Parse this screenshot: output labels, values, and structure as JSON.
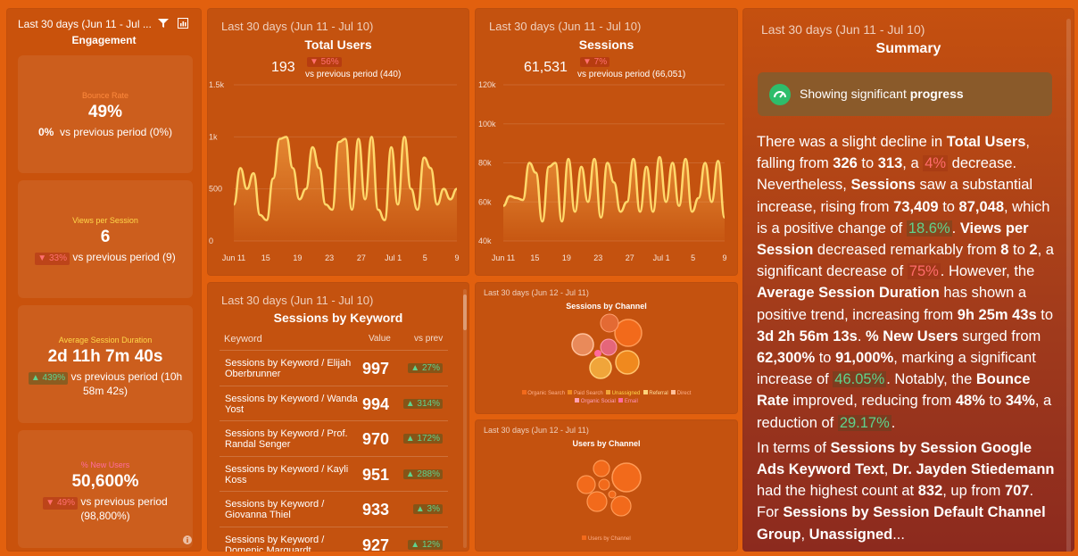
{
  "engagement": {
    "period": "Last 30 days (Jun 11 - Jul ...",
    "title": "Engagement",
    "cards": [
      {
        "label": "Bounce Rate",
        "value": "49%",
        "change": "0%",
        "compare": "vs previous period (0%)",
        "label_color": "#ff8a3d"
      },
      {
        "label": "Views per Session",
        "value": "6",
        "change": "▼ 33%",
        "compare": "vs previous period (9)",
        "label_color": "#ffd84a"
      },
      {
        "label": "Average Session Duration",
        "value": "2d 11h 7m 40s",
        "change": "▲ 439%",
        "compare": "vs previous period (10h 58m 42s)",
        "label_color": "#ffd84a"
      },
      {
        "label": "% New Users",
        "value": "50,600%",
        "change": "▼ 49%",
        "compare": "vs previous period (98,800%)",
        "label_color": "#ff6b9e"
      }
    ]
  },
  "total_users": {
    "period": "Last 30 days (Jun 11 - Jul 10)",
    "title": "Total Users",
    "value": "193",
    "change": "▼ 56%",
    "compare": "vs previous period (440)"
  },
  "sessions": {
    "period": "Last 30 days (Jun 11 - Jul 10)",
    "title": "Sessions",
    "value": "61,531",
    "change": "▼ 7%",
    "compare": "vs previous period (66,051)"
  },
  "keywords": {
    "period": "Last 30 days (Jun 11 - Jul 10)",
    "title": "Sessions by Keyword",
    "col_keyword": "Keyword",
    "col_value": "Value",
    "col_prev": "vs prev",
    "rows": [
      {
        "name": "Sessions by Keyword / Elijah Oberbrunner",
        "value": "997",
        "change": "▲ 27%"
      },
      {
        "name": "Sessions by Keyword / Wanda Yost",
        "value": "994",
        "change": "▲ 314%"
      },
      {
        "name": "Sessions by Keyword / Prof. Randal Senger",
        "value": "970",
        "change": "▲ 172%"
      },
      {
        "name": "Sessions by Keyword / Kayli Koss",
        "value": "951",
        "change": "▲ 288%"
      },
      {
        "name": "Sessions by Keyword / Giovanna Thiel",
        "value": "933",
        "change": "▲ 3%"
      },
      {
        "name": "Sessions by Keyword / Domenic Marquardt",
        "value": "927",
        "change": "▲ 12%"
      }
    ]
  },
  "channels": {
    "period": "Last 30 days (Jun 12 - Jul 11)",
    "title": "Sessions by Channel",
    "legend": [
      "Organic Search",
      "Paid Search",
      "Unassigned",
      "Referral",
      "Direct",
      "Organic Social",
      "Email"
    ]
  },
  "users_channel": {
    "period": "Last 30 days (Jun 12 - Jul 11)",
    "title": "Users by Channel",
    "legend": [
      "Users by Channel"
    ]
  },
  "summary": {
    "period": "Last 30 days (Jun 11 - Jul 10)",
    "title": "Summary",
    "badge_text": "Showing significant ",
    "badge_bold": "progress"
  },
  "chart_data": [
    {
      "type": "area",
      "title": "Total Users",
      "x_ticks": [
        "Jun 11",
        "15",
        "19",
        "23",
        "27",
        "Jul 1",
        "5",
        "9"
      ],
      "y_ticks": [
        "0",
        "500",
        "1k",
        "1.5k"
      ],
      "ylim": [
        0,
        1500
      ],
      "series": [
        {
          "values": [
            350,
            700,
            500,
            650,
            250,
            200,
            600,
            980,
            1000,
            700,
            400,
            500,
            900,
            700,
            350,
            300,
            950,
            980,
            300,
            980,
            400,
            1000,
            300,
            200,
            900,
            350,
            1000,
            500,
            300,
            800,
            700,
            350,
            500,
            400,
            500
          ]
        }
      ]
    },
    {
      "type": "area",
      "title": "Sessions",
      "x_ticks": [
        "Jun 11",
        "15",
        "19",
        "23",
        "27",
        "Jul 1",
        "5",
        "9"
      ],
      "y_ticks": [
        "40k",
        "60k",
        "80k",
        "100k",
        "120k"
      ],
      "ylim": [
        40000,
        120000
      ],
      "series": [
        {
          "values": [
            58000,
            63000,
            62000,
            61000,
            80000,
            75000,
            50000,
            78000,
            80000,
            50000,
            82000,
            55000,
            78000,
            60000,
            82000,
            52000,
            80000,
            70000,
            55000,
            60000,
            82000,
            55000,
            78000,
            55000,
            83000,
            60000,
            80000,
            58000,
            82000,
            55000,
            62000,
            80000,
            60000,
            81000,
            52000
          ]
        }
      ]
    }
  ]
}
